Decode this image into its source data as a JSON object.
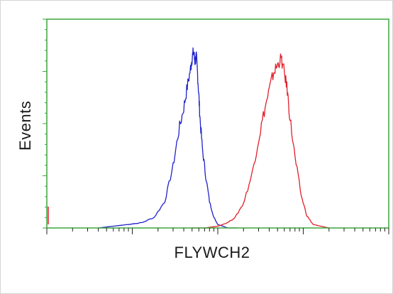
{
  "chart_data": {
    "type": "line",
    "title": "",
    "xlabel": "FLYWCH2",
    "ylabel": "Events",
    "x_scale": "log",
    "xlim": [
      1,
      10000
    ],
    "ylim": [
      0,
      100
    ],
    "grid": false,
    "colors": {
      "axis": "#3aa63a",
      "blue_series": "#1f22c8",
      "red_series": "#e0202a"
    },
    "series": [
      {
        "color": "#1f22c8",
        "x": [
          4,
          6,
          9,
          13,
          18,
          24,
          30,
          35,
          40,
          44,
          48,
          50,
          52,
          54,
          56,
          58,
          60,
          62,
          66,
          72,
          80,
          90,
          100,
          115,
          130,
          150,
          170
        ],
        "y": [
          0,
          1,
          2,
          3,
          6,
          15,
          35,
          55,
          68,
          80,
          90,
          96,
          100,
          94,
          97,
          87,
          75,
          62,
          45,
          30,
          15,
          6,
          2,
          1,
          0,
          0,
          0
        ]
      },
      {
        "color": "#e0202a",
        "x": [
          50,
          70,
          100,
          130,
          160,
          200,
          250,
          300,
          350,
          400,
          450,
          500,
          550,
          600,
          650,
          700,
          800,
          950,
          1100,
          1300,
          1600,
          2000
        ],
        "y": [
          0,
          0,
          1,
          3,
          6,
          14,
          30,
          50,
          66,
          78,
          88,
          92,
          96,
          88,
          78,
          62,
          40,
          18,
          7,
          2,
          1,
          0
        ]
      }
    ]
  }
}
